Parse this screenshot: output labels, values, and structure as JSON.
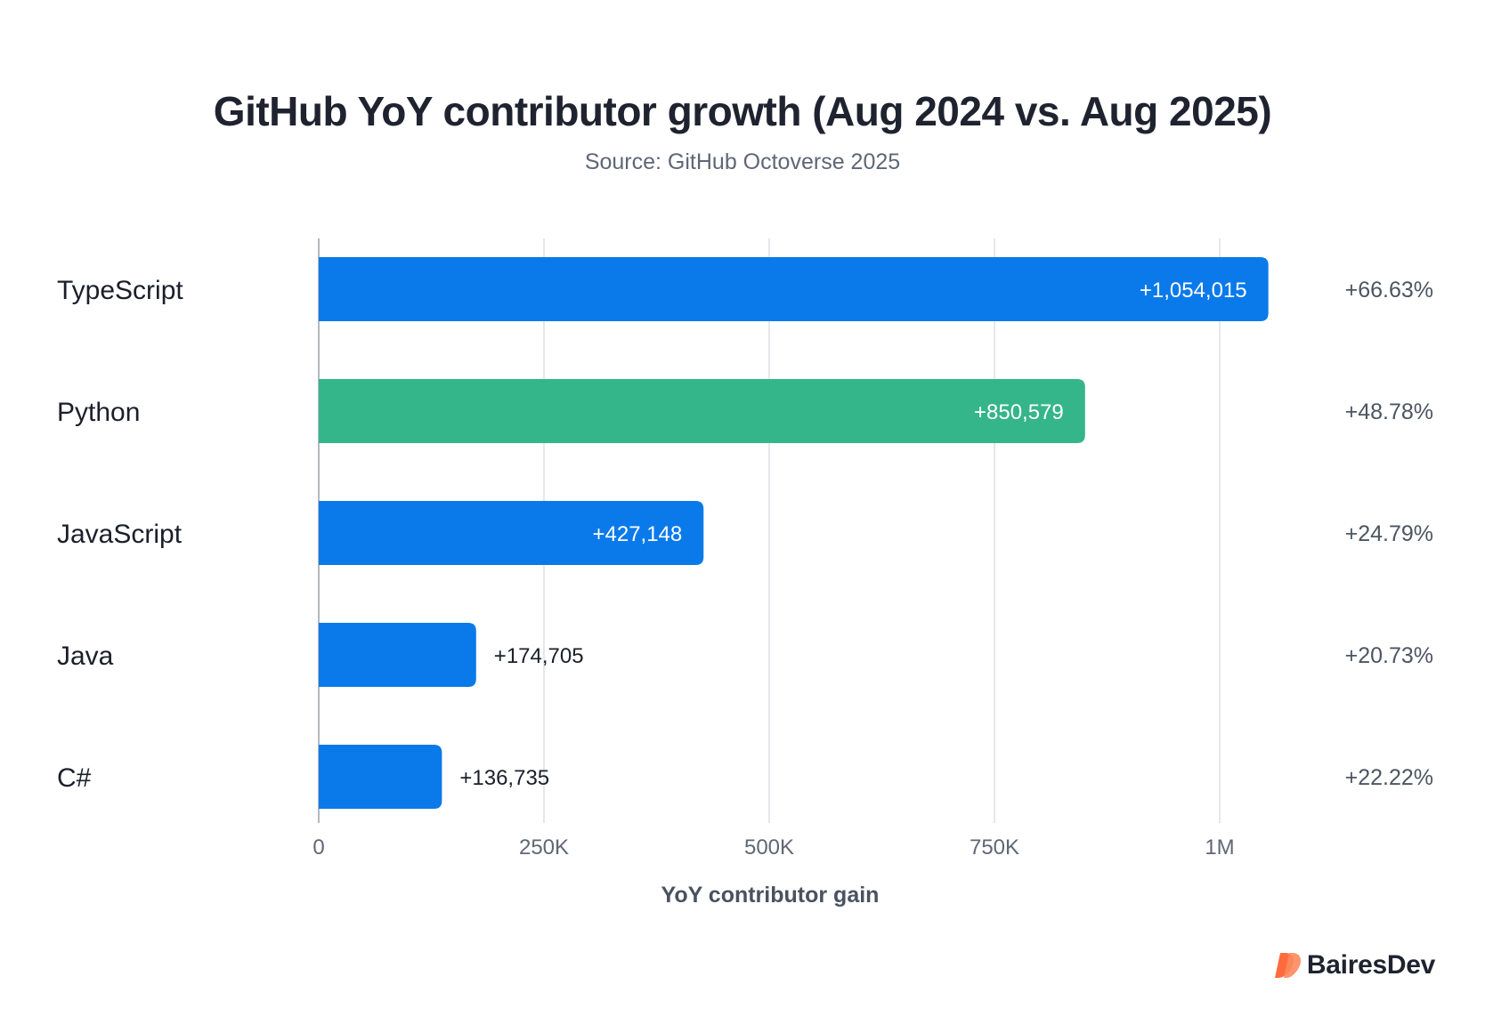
{
  "title": "GitHub YoY contributor growth (Aug 2024 vs. Aug 2025)",
  "subtitle": "Source: GitHub Octoverse 2025",
  "brand": {
    "name": "BairesDev",
    "logo_icon": "bairesdev-logo-icon",
    "logo_color": "#ff6b3d"
  },
  "colors": {
    "default_bar": "#0a7aea",
    "highlight_bar": "#35b58a",
    "grid": "#dedfe3",
    "axis": "#b5b8be"
  },
  "chart_data": {
    "type": "bar",
    "orientation": "horizontal",
    "title": "GitHub YoY contributor growth (Aug 2024 vs. Aug 2025)",
    "subtitle": "Source: GitHub Octoverse 2025",
    "xlabel": "YoY contributor gain",
    "ylabel": "",
    "xlim": [
      0,
      1000000
    ],
    "xticks": [
      {
        "value": 0,
        "label": "0"
      },
      {
        "value": 250000,
        "label": "250K"
      },
      {
        "value": 500000,
        "label": "500K"
      },
      {
        "value": 750000,
        "label": "750K"
      },
      {
        "value": 1000000,
        "label": "1M"
      }
    ],
    "grid": true,
    "categories": [
      "TypeScript",
      "Python",
      "JavaScript",
      "Java",
      "C#"
    ],
    "values": [
      1054015,
      850579,
      427148,
      174705,
      136735
    ],
    "value_labels": [
      "+1,054,015",
      "+850,579",
      "+427,148",
      "+174,705",
      "+136,735"
    ],
    "percent_labels": [
      "+66.63%",
      "+48.78%",
      "+24.79%",
      "+20.73%",
      "+22.22%"
    ],
    "bar_colors": [
      "#0a7aea",
      "#35b58a",
      "#0a7aea",
      "#0a7aea",
      "#0a7aea"
    ]
  }
}
